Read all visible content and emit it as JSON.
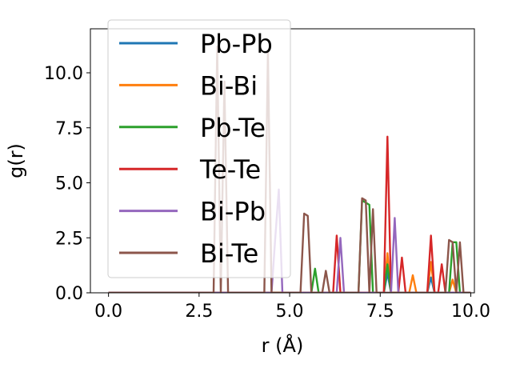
{
  "chart_data": {
    "type": "line",
    "title": "",
    "xlabel": "r (Å)",
    "ylabel": "g(r)",
    "xlim": [
      -0.5,
      10.1
    ],
    "ylim": [
      0,
      12.0
    ],
    "xticks": [
      {
        "value": 0.0,
        "label": "0.0"
      },
      {
        "value": 2.5,
        "label": "2.5"
      },
      {
        "value": 5.0,
        "label": "5.0"
      },
      {
        "value": 7.5,
        "label": "7.5"
      },
      {
        "value": 10.0,
        "label": "10.0"
      }
    ],
    "yticks": [
      {
        "value": 0.0,
        "label": "0.0"
      },
      {
        "value": 2.5,
        "label": "2.5"
      },
      {
        "value": 5.0,
        "label": "5.0"
      },
      {
        "value": 7.5,
        "label": "7.5"
      },
      {
        "value": 10.0,
        "label": "10.0"
      }
    ],
    "grid": false,
    "legend_position": "upper-left",
    "series": [
      {
        "name": "Pb-Pb",
        "color": "#1f77b4",
        "x": [
          0.0,
          7.6,
          7.7,
          7.8,
          8.8,
          8.9,
          9.0,
          10.0
        ],
        "y": [
          0.0,
          0.0,
          0.9,
          0.0,
          0.0,
          0.7,
          0.0,
          0.0
        ]
      },
      {
        "name": "Bi-Bi",
        "color": "#ff7f0e",
        "x": [
          0.0,
          7.6,
          7.7,
          7.8,
          8.3,
          8.4,
          8.5,
          8.8,
          8.9,
          9.0,
          9.4,
          9.5,
          9.6,
          10.0
        ],
        "y": [
          0.0,
          0.0,
          1.8,
          0.0,
          0.0,
          0.8,
          0.0,
          0.0,
          1.4,
          0.0,
          0.0,
          0.6,
          0.0,
          0.0
        ]
      },
      {
        "name": "Pb-Te",
        "color": "#2ca02c",
        "x": [
          0.0,
          5.6,
          5.7,
          5.8,
          6.9,
          7.0,
          7.2,
          7.3,
          7.6,
          7.7,
          7.8,
          9.4,
          9.5,
          9.6,
          9.7,
          10.0
        ],
        "y": [
          0.0,
          0.0,
          1.1,
          0.0,
          0.0,
          4.2,
          4.0,
          0.0,
          0.0,
          1.3,
          0.0,
          0.0,
          2.3,
          2.3,
          0.0,
          0.0
        ]
      },
      {
        "name": "Te-Te",
        "color": "#d62728",
        "x": [
          0.0,
          6.2,
          6.3,
          6.4,
          7.6,
          7.7,
          7.8,
          8.0,
          8.1,
          8.2,
          8.8,
          8.9,
          9.0,
          9.1,
          9.2,
          9.3,
          10.0
        ],
        "y": [
          0.0,
          0.0,
          2.6,
          0.0,
          0.0,
          7.1,
          0.0,
          0.0,
          1.6,
          0.0,
          0.0,
          2.6,
          0.0,
          0.0,
          1.3,
          0.0,
          0.0
        ]
      },
      {
        "name": "Bi-Pb",
        "color": "#9467bd",
        "x": [
          0.0,
          4.5,
          4.6,
          4.7,
          4.8,
          6.3,
          6.4,
          6.5,
          7.8,
          7.9,
          8.0,
          10.0
        ],
        "y": [
          0.0,
          0.0,
          2.4,
          4.7,
          0.0,
          0.0,
          2.5,
          0.0,
          0.0,
          3.4,
          0.0,
          0.0
        ]
      },
      {
        "name": "Bi-Te",
        "color": "#8c564b",
        "x": [
          0.0,
          2.9,
          3.0,
          3.1,
          3.2,
          3.3,
          4.3,
          4.4,
          4.5,
          5.3,
          5.4,
          5.5,
          5.6,
          5.9,
          6.0,
          6.1,
          6.9,
          7.0,
          7.1,
          7.2,
          7.3,
          7.4,
          9.3,
          9.4,
          9.5,
          9.6,
          9.7,
          9.8,
          10.0
        ],
        "y": [
          0.0,
          0.0,
          11.2,
          0.0,
          9.6,
          0.0,
          0.0,
          11.0,
          0.0,
          0.0,
          3.6,
          3.5,
          0.0,
          0.0,
          1.0,
          0.0,
          0.0,
          4.3,
          4.2,
          0.0,
          3.8,
          0.0,
          0.0,
          2.4,
          2.3,
          0.0,
          2.3,
          0.0,
          0.0
        ]
      }
    ]
  }
}
